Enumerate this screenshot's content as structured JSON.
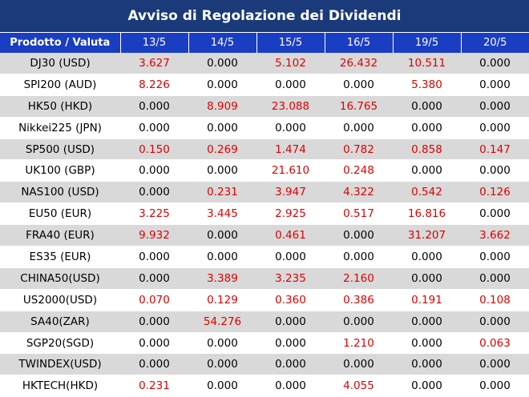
{
  "title": "Avviso di Regolazione dei Dividendi",
  "colors": {
    "title_bg": "#1a3a7a",
    "header_bg": "#1a3ec2",
    "row_alt": "#d9d9d9",
    "positive": "#e00000",
    "zero": "#000000"
  },
  "header": {
    "product_label": "Prodotto / Valuta",
    "dates": [
      "13/5",
      "14/5",
      "15/5",
      "16/5",
      "19/5",
      "20/5"
    ]
  },
  "rows": [
    {
      "product": "DJ30 (USD)",
      "values": [
        "3.627",
        "0.000",
        "5.102",
        "26.432",
        "10.511",
        "0.000"
      ]
    },
    {
      "product": "SPI200 (AUD)",
      "values": [
        "8.226",
        "0.000",
        "0.000",
        "0.000",
        "5.380",
        "0.000"
      ]
    },
    {
      "product": "HK50 (HKD)",
      "values": [
        "0.000",
        "8.909",
        "23.088",
        "16.765",
        "0.000",
        "0.000"
      ]
    },
    {
      "product": "Nikkei225 (JPN)",
      "values": [
        "0.000",
        "0.000",
        "0.000",
        "0.000",
        "0.000",
        "0.000"
      ]
    },
    {
      "product": "SP500 (USD)",
      "values": [
        "0.150",
        "0.269",
        "1.474",
        "0.782",
        "0.858",
        "0.147"
      ]
    },
    {
      "product": "UK100 (GBP)",
      "values": [
        "0.000",
        "0.000",
        "21.610",
        "0.248",
        "0.000",
        "0.000"
      ]
    },
    {
      "product": "NAS100 (USD)",
      "values": [
        "0.000",
        "0.231",
        "3.947",
        "4.322",
        "0.542",
        "0.126"
      ]
    },
    {
      "product": "EU50 (EUR)",
      "values": [
        "3.225",
        "3.445",
        "2.925",
        "0.517",
        "16.816",
        "0.000"
      ]
    },
    {
      "product": "FRA40 (EUR)",
      "values": [
        "9.932",
        "0.000",
        "0.461",
        "0.000",
        "31.207",
        "3.662"
      ]
    },
    {
      "product": "ES35 (EUR)",
      "values": [
        "0.000",
        "0.000",
        "0.000",
        "0.000",
        "0.000",
        "0.000"
      ]
    },
    {
      "product": "CHINA50(USD)",
      "values": [
        "0.000",
        "3.389",
        "3.235",
        "2.160",
        "0.000",
        "0.000"
      ]
    },
    {
      "product": "US2000(USD)",
      "values": [
        "0.070",
        "0.129",
        "0.360",
        "0.386",
        "0.191",
        "0.108"
      ]
    },
    {
      "product": "SA40(ZAR)",
      "values": [
        "0.000",
        "54.276",
        "0.000",
        "0.000",
        "0.000",
        "0.000"
      ]
    },
    {
      "product": "SGP20(SGD)",
      "values": [
        "0.000",
        "0.000",
        "0.000",
        "1.210",
        "0.000",
        "0.063"
      ]
    },
    {
      "product": "TWINDEX(USD)",
      "values": [
        "0.000",
        "0.000",
        "0.000",
        "0.000",
        "0.000",
        "0.000"
      ]
    },
    {
      "product": "HKTECH(HKD)",
      "values": [
        "0.231",
        "0.000",
        "0.000",
        "4.055",
        "0.000",
        "0.000"
      ]
    }
  ]
}
